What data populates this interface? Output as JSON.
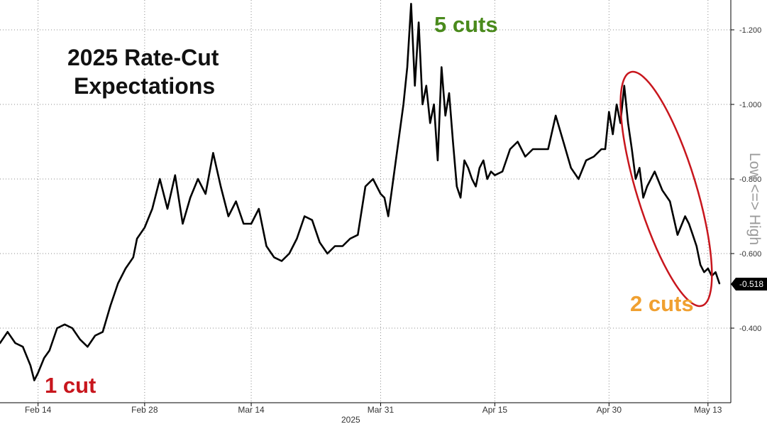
{
  "chart_data": {
    "type": "line",
    "title_lines": [
      "2025 Rate-Cut",
      "Expectations"
    ],
    "xlabel": "2025",
    "ylabel": "Low <=> High",
    "y_tick_labels": [
      "-0.400",
      "-0.600",
      "-0.800",
      "-1.000",
      "-1.200"
    ],
    "y_ticks": [
      -0.4,
      -0.6,
      -0.8,
      -1.0,
      -1.2
    ],
    "ylim_top_to_bottom": [
      -1.28,
      -0.2
    ],
    "x_tick_labels": [
      "Feb 14",
      "Feb 28",
      "Mar 14",
      "Mar 31",
      "Apr 15",
      "Apr 30",
      "May 13"
    ],
    "x_tick_days": [
      14,
      28,
      42,
      59,
      74,
      89,
      102
    ],
    "x_day_range": [
      9,
      105
    ],
    "x_unit": "days from Jan 31, 2025",
    "grid": true,
    "last_value": -0.518,
    "last_value_label": "-0.518",
    "series": [
      {
        "name": "",
        "color": "#000000",
        "x": [
          9.0,
          10.0,
          11.0,
          12.0,
          13.0,
          13.5,
          14.0,
          14.8,
          15.5,
          16.5,
          17.5,
          18.5,
          19.5,
          20.5,
          21.5,
          22.5,
          23.5,
          24.5,
          25.5,
          26.5,
          27.0,
          28.0,
          29.0,
          30.0,
          31.0,
          32.0,
          33.0,
          34.0,
          35.0,
          36.0,
          37.0,
          38.0,
          39.0,
          40.0,
          41.0,
          42.0,
          43.0,
          44.0,
          45.0,
          46.0,
          47.0,
          48.0,
          49.0,
          50.0,
          51.0,
          52.0,
          53.0,
          54.0,
          55.0,
          56.0,
          57.0,
          58.0,
          58.5,
          59.0,
          59.5,
          60.0,
          61.0,
          62.0,
          62.5,
          63.0,
          63.5,
          64.0,
          64.5,
          65.0,
          65.5,
          66.0,
          66.5,
          67.0,
          67.5,
          68.0,
          68.5,
          69.0,
          69.5,
          70.0,
          70.5,
          71.0,
          71.5,
          72.0,
          72.5,
          73.0,
          73.5,
          74.0,
          75.0,
          76.0,
          77.0,
          78.0,
          79.0,
          80.0,
          81.0,
          82.0,
          83.0,
          84.0,
          85.0,
          86.0,
          87.0,
          88.0,
          88.5,
          89.0,
          89.5,
          90.0,
          90.5,
          91.0,
          91.5,
          92.0,
          92.5,
          93.0,
          93.5,
          94.0,
          95.0,
          96.0,
          97.0,
          98.0,
          99.0,
          99.5,
          100.0,
          100.5,
          101.0,
          101.5,
          102.0,
          102.5,
          103.0,
          103.5
        ],
        "y": [
          -0.36,
          -0.39,
          -0.36,
          -0.35,
          -0.3,
          -0.26,
          -0.28,
          -0.32,
          -0.34,
          -0.4,
          -0.41,
          -0.4,
          -0.37,
          -0.35,
          -0.38,
          -0.39,
          -0.46,
          -0.52,
          -0.56,
          -0.59,
          -0.64,
          -0.67,
          -0.72,
          -0.8,
          -0.72,
          -0.81,
          -0.68,
          -0.75,
          -0.8,
          -0.76,
          -0.87,
          -0.78,
          -0.7,
          -0.74,
          -0.68,
          -0.68,
          -0.72,
          -0.62,
          -0.59,
          -0.58,
          -0.6,
          -0.64,
          -0.7,
          -0.69,
          -0.63,
          -0.6,
          -0.62,
          -0.62,
          -0.64,
          -0.65,
          -0.78,
          -0.8,
          -0.78,
          -0.76,
          -0.75,
          -0.7,
          -0.85,
          -1.0,
          -1.1,
          -1.27,
          -1.05,
          -1.22,
          -1.0,
          -1.05,
          -0.95,
          -1.0,
          -0.85,
          -1.1,
          -0.97,
          -1.03,
          -0.9,
          -0.78,
          -0.75,
          -0.85,
          -0.83,
          -0.8,
          -0.78,
          -0.83,
          -0.85,
          -0.8,
          -0.82,
          -0.81,
          -0.82,
          -0.88,
          -0.9,
          -0.86,
          -0.88,
          -0.88,
          -0.88,
          -0.97,
          -0.9,
          -0.83,
          -0.8,
          -0.85,
          -0.86,
          -0.88,
          -0.88,
          -0.98,
          -0.92,
          -1.0,
          -0.95,
          -1.05,
          -0.95,
          -0.88,
          -0.8,
          -0.83,
          -0.75,
          -0.78,
          -0.82,
          -0.77,
          -0.74,
          -0.65,
          -0.7,
          -0.68,
          -0.65,
          -0.62,
          -0.57,
          -0.55,
          -0.56,
          -0.54,
          -0.55,
          -0.52
        ]
      }
    ],
    "annotations": [
      {
        "text": "1 cut",
        "color": "#c8161d"
      },
      {
        "text": "5 cuts",
        "color": "#4a8a1c"
      },
      {
        "text": "2 cuts",
        "color": "#f0a030"
      }
    ],
    "highlight_color": "#c8161d"
  }
}
